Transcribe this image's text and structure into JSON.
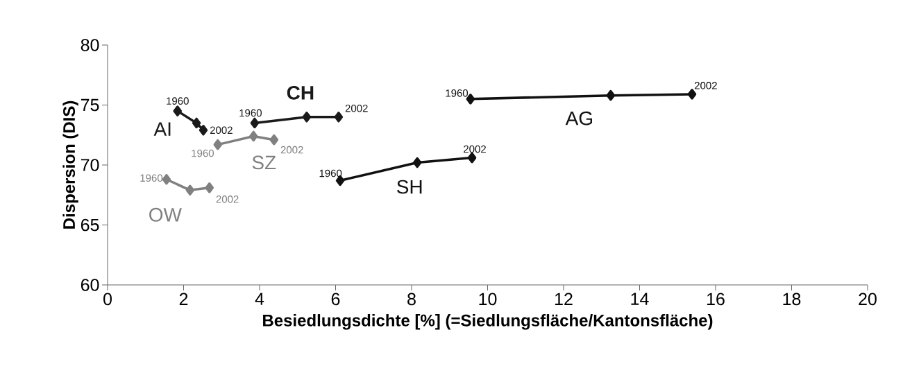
{
  "chart_data": {
    "type": "line",
    "xlabel": "Besiedlungsdichte [%] (=Siedlungsfläche/Kantonsfläche)",
    "ylabel": "Dispersion (DIS)",
    "xlim": [
      0,
      20
    ],
    "ylim": [
      60,
      80
    ],
    "xticks": [
      0,
      2,
      4,
      6,
      8,
      10,
      12,
      14,
      16,
      18,
      20
    ],
    "yticks": [
      60,
      65,
      70,
      75,
      80
    ],
    "marker": "diamond",
    "series": [
      {
        "name": "AI",
        "color": "#1a1a1a",
        "x": [
          1.84,
          2.34,
          2.52
        ],
        "values": [
          74.5,
          73.5,
          72.9
        ]
      },
      {
        "name": "CH",
        "color": "#1a1a1a",
        "x": [
          3.87,
          5.24,
          6.08
        ],
        "values": [
          73.5,
          74.0,
          74.0
        ]
      },
      {
        "name": "SZ",
        "color": "#808080",
        "x": [
          2.9,
          3.84,
          4.38
        ],
        "values": [
          71.7,
          72.4,
          72.1
        ]
      },
      {
        "name": "OW",
        "color": "#808080",
        "x": [
          1.55,
          2.17,
          2.68
        ],
        "values": [
          68.8,
          67.9,
          68.1
        ]
      },
      {
        "name": "SH",
        "color": "#111111",
        "x": [
          6.12,
          8.15,
          9.59
        ],
        "values": [
          68.7,
          70.2,
          70.6
        ]
      },
      {
        "name": "AG",
        "color": "#111111",
        "x": [
          9.55,
          13.24,
          15.38
        ],
        "values": [
          75.5,
          75.8,
          75.9
        ]
      }
    ],
    "annotations": [
      {
        "text": "1960",
        "x": 1.84,
        "y": 74.5
      },
      {
        "text": "2002",
        "x": 2.52,
        "y": 72.9
      },
      {
        "text": "1960",
        "x": 3.87,
        "y": 73.5
      },
      {
        "text": "2002",
        "x": 6.08,
        "y": 74.0
      },
      {
        "text": "1960",
        "x": 2.9,
        "y": 71.7
      },
      {
        "text": "2002",
        "x": 4.38,
        "y": 72.1
      },
      {
        "text": "1960",
        "x": 1.55,
        "y": 68.8
      },
      {
        "text": "2002",
        "x": 2.68,
        "y": 68.1
      },
      {
        "text": "1960",
        "x": 6.12,
        "y": 68.7
      },
      {
        "text": "2002",
        "x": 9.59,
        "y": 70.6
      },
      {
        "text": "1960",
        "x": 9.55,
        "y": 75.5
      },
      {
        "text": "2002",
        "x": 15.38,
        "y": 75.9
      }
    ]
  }
}
